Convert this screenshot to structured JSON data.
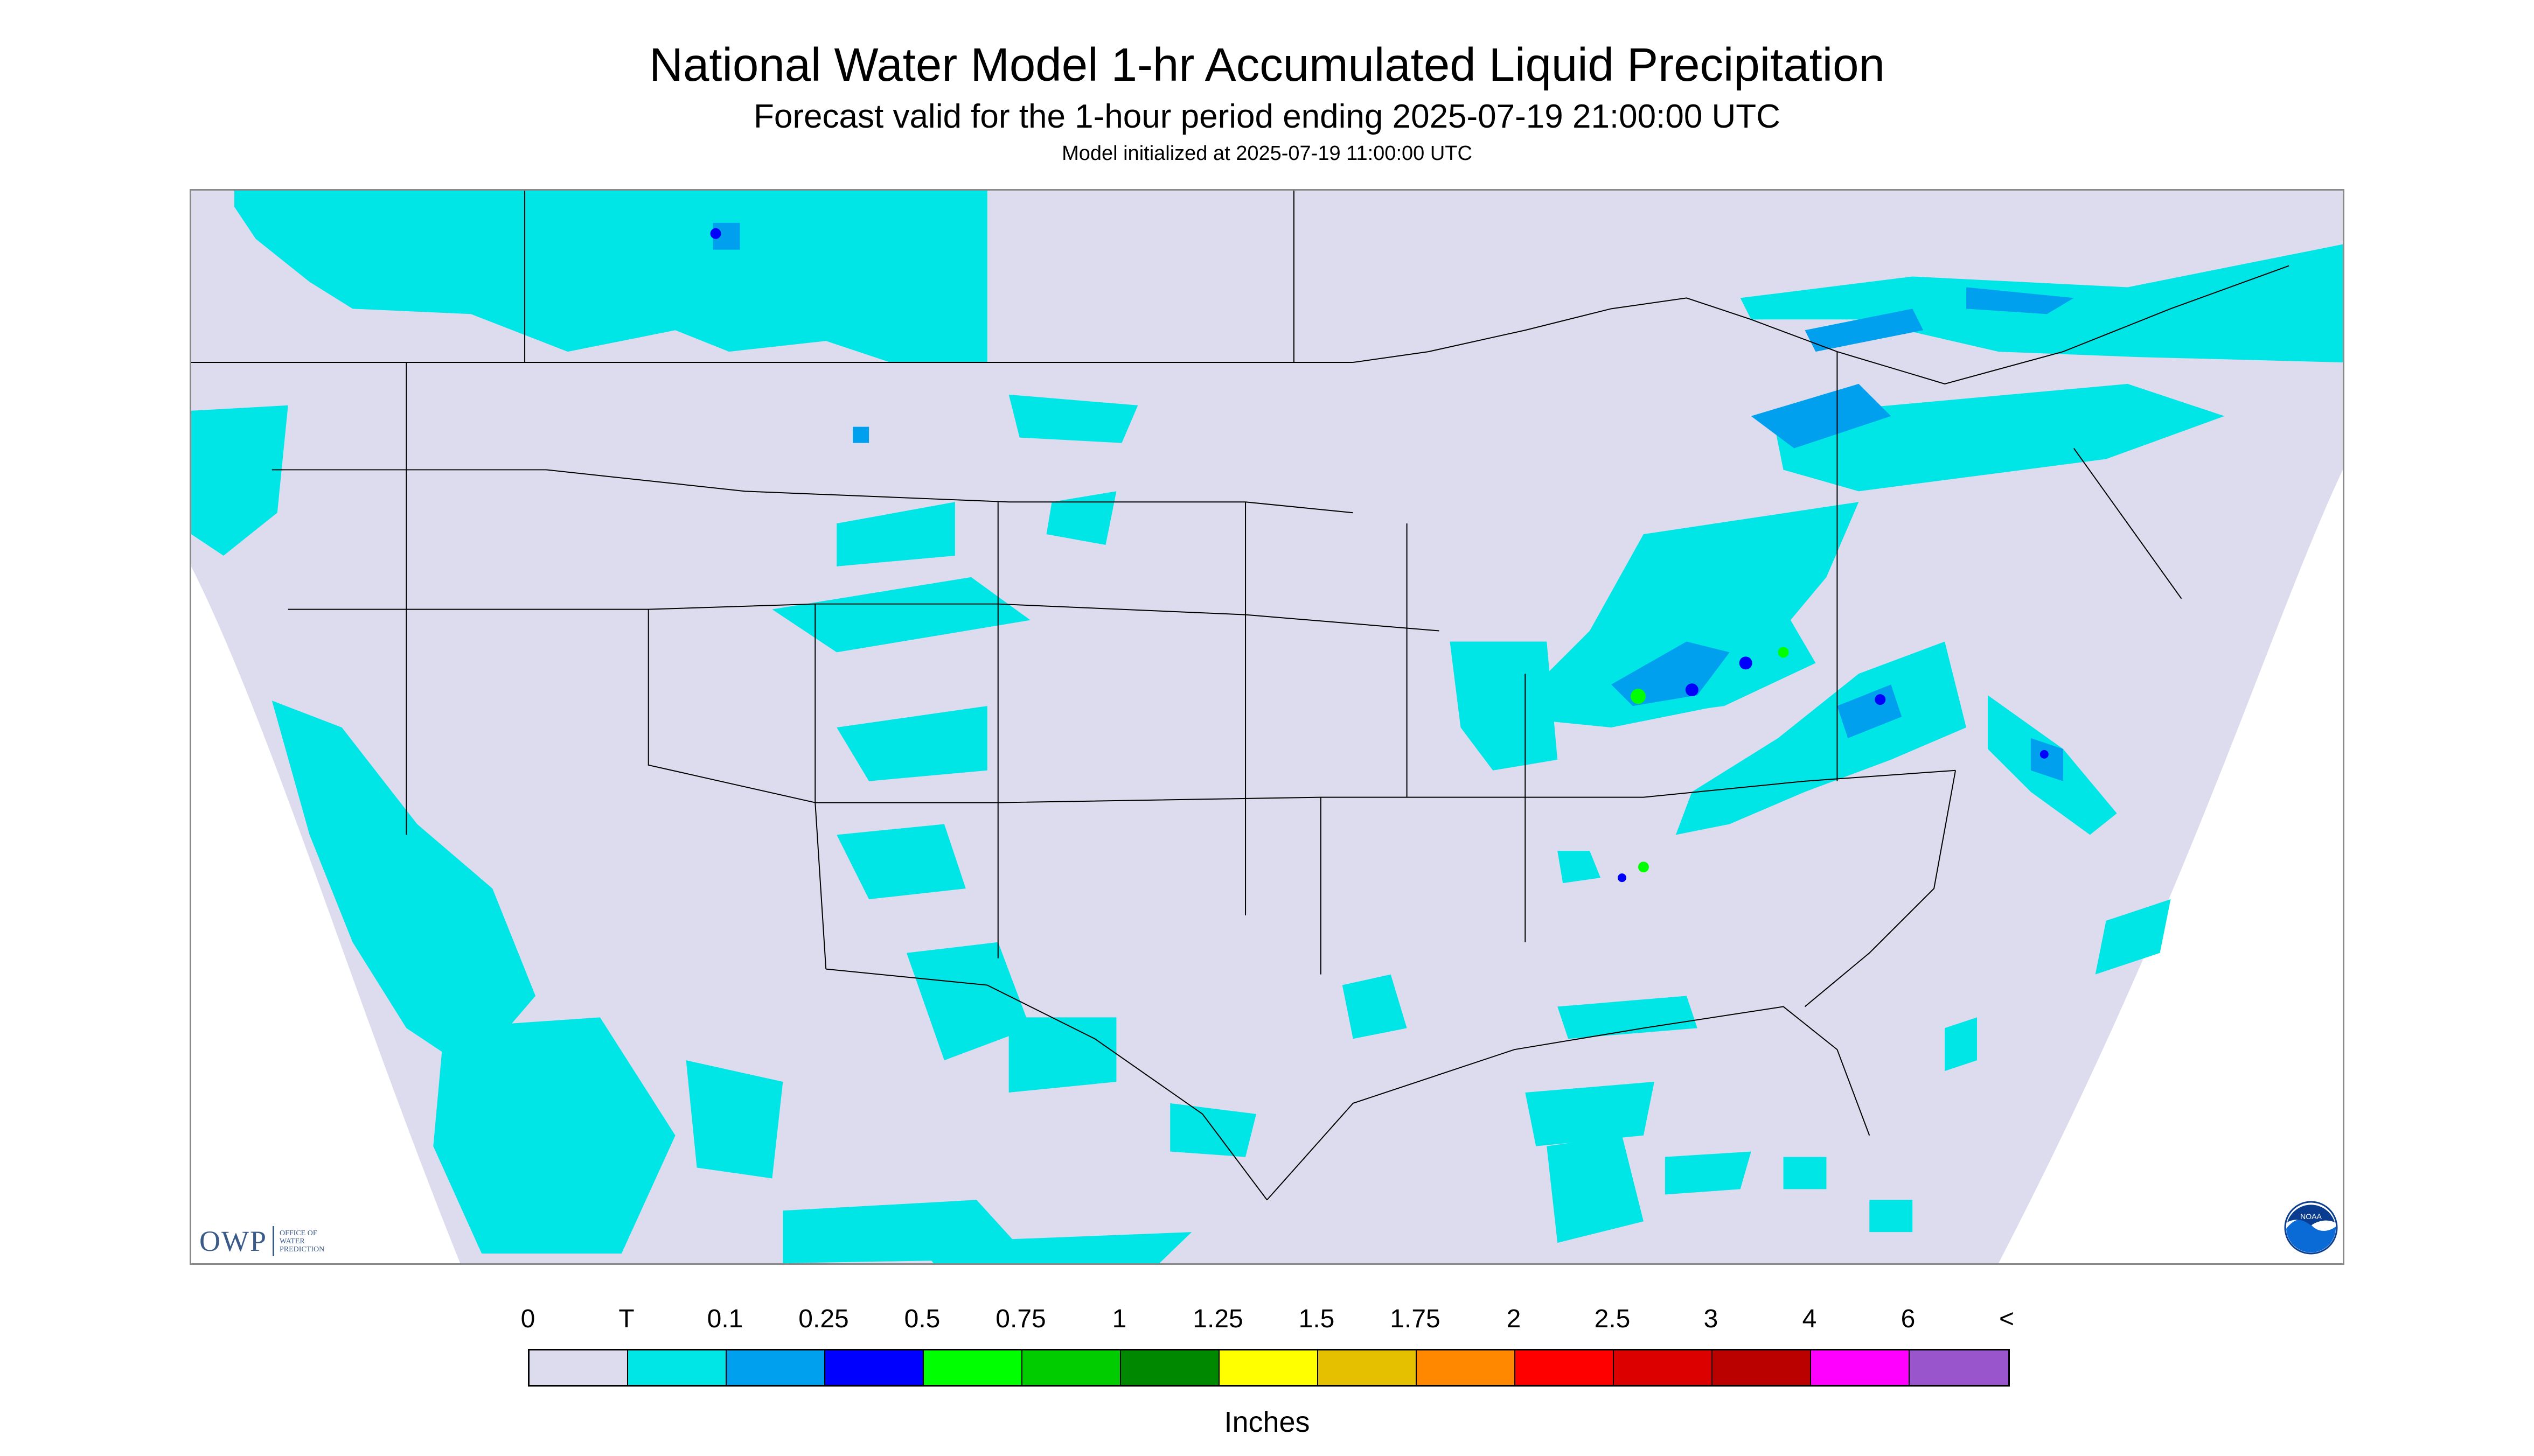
{
  "header": {
    "title": "National Water Model 1-hr Accumulated Liquid Precipitation",
    "subtitle": "Forecast valid for the 1-hour period ending 2025-07-19 21:00:00 UTC",
    "init_line": "Model initialized at 2025-07-19 11:00:00 UTC"
  },
  "map": {
    "domain_fill": "#dcdcee",
    "outside_fill": "#ffffff",
    "boundary_color": "#000000"
  },
  "logos": {
    "owp": {
      "text": "OWP",
      "small_lines": [
        "Office of",
        "Water",
        "Prediction"
      ]
    },
    "noaa": {
      "text": "NOAA"
    }
  },
  "legend": {
    "labels": [
      "0",
      "T",
      "0.1",
      "0.25",
      "0.5",
      "0.75",
      "1",
      "1.25",
      "1.5",
      "1.75",
      "2",
      "2.5",
      "3",
      "4",
      "6",
      "<"
    ],
    "colors": [
      "#dcdcee",
      "#00e5e5",
      "#00a0ee",
      "#0000ff",
      "#00ff00",
      "#00cc00",
      "#008800",
      "#ffff00",
      "#e5c000",
      "#ff8800",
      "#ff0000",
      "#dd0000",
      "#bb0000",
      "#ff00ff",
      "#9955cc"
    ],
    "units": "Inches"
  }
}
